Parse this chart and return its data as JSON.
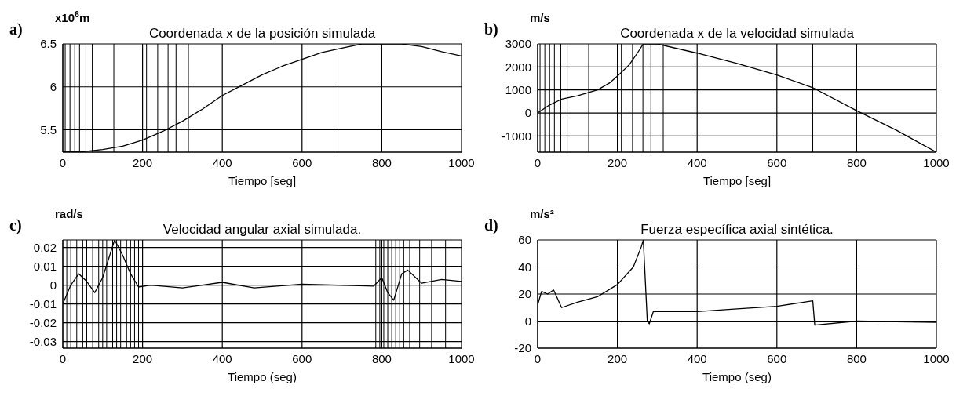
{
  "chart_data": [
    {
      "type": "line",
      "title": "Coordenada x de la posición simulada",
      "xlabel": "Tiempo [seg]",
      "ylabel": "x10$^{6}$m",
      "annotations": [
        "a)"
      ],
      "x": [
        0,
        50,
        100,
        150,
        200,
        250,
        300,
        350,
        400,
        450,
        500,
        550,
        600,
        650,
        700,
        750,
        800,
        850,
        900,
        950,
        1000
      ],
      "series": [
        {
          "color": "#000000",
          "values": [
            5.24,
            5.245,
            5.27,
            5.31,
            5.38,
            5.48,
            5.6,
            5.74,
            5.9,
            6.02,
            6.14,
            6.24,
            6.32,
            6.4,
            6.45,
            6.5,
            6.5,
            6.5,
            6.47,
            6.41,
            6.36
          ]
        }
      ],
      "xlim": [
        0,
        1000
      ],
      "xticks": [
        0,
        200,
        400,
        600,
        800,
        1000
      ],
      "ylim": [
        5.24,
        6.5
      ],
      "yticks": [
        5.5,
        6,
        6.5
      ],
      "grid": true,
      "ref_lines": [
        {
          "axis": "x",
          "value": 6,
          "color": "#000000"
        },
        {
          "axis": "x",
          "value": 18,
          "color": "#000000"
        },
        {
          "axis": "x",
          "value": 30,
          "color": "#000000"
        },
        {
          "axis": "x",
          "value": 42,
          "color": "#000000"
        },
        {
          "axis": "x",
          "value": 58,
          "color": "#000000"
        },
        {
          "axis": "x",
          "value": 74,
          "color": "#000000"
        },
        {
          "axis": "x",
          "value": 128,
          "color": "#000000"
        },
        {
          "axis": "x",
          "value": 210,
          "color": "#000000"
        },
        {
          "axis": "x",
          "value": 238,
          "color": "#000000"
        },
        {
          "axis": "x",
          "value": 264,
          "color": "#000000"
        },
        {
          "axis": "x",
          "value": 284,
          "color": "#000000"
        },
        {
          "axis": "x",
          "value": 315,
          "color": "#000000"
        },
        {
          "axis": "x",
          "value": 690,
          "color": "#000000"
        }
      ]
    },
    {
      "type": "line",
      "title": "Coordenada x de la velocidad simulada",
      "xlabel": "Tiempo [seg]",
      "ylabel": "m/s",
      "annotations": [
        "b)"
      ],
      "x": [
        0,
        30,
        60,
        100,
        150,
        180,
        200,
        230,
        250,
        265,
        300,
        400,
        500,
        600,
        690,
        800,
        900,
        1000
      ],
      "series": [
        {
          "color": "#000000",
          "values": [
            0,
            350,
            600,
            750,
            1000,
            1300,
            1600,
            2100,
            2600,
            3000,
            3000,
            2600,
            2150,
            1650,
            1100,
            100,
            -750,
            -1700
          ]
        }
      ],
      "xlim": [
        0,
        1000
      ],
      "xticks": [
        0,
        200,
        400,
        600,
        800,
        1000
      ],
      "ylim": [
        -1700,
        3000
      ],
      "yticks": [
        -1000,
        0,
        1000,
        2000,
        3000
      ],
      "grid": true,
      "ref_lines": [
        {
          "axis": "x",
          "value": 6,
          "color": "#000000"
        },
        {
          "axis": "x",
          "value": 18,
          "color": "#000000"
        },
        {
          "axis": "x",
          "value": 30,
          "color": "#000000"
        },
        {
          "axis": "x",
          "value": 42,
          "color": "#000000"
        },
        {
          "axis": "x",
          "value": 58,
          "color": "#000000"
        },
        {
          "axis": "x",
          "value": 74,
          "color": "#000000"
        },
        {
          "axis": "x",
          "value": 128,
          "color": "#000000"
        },
        {
          "axis": "x",
          "value": 210,
          "color": "#000000"
        },
        {
          "axis": "x",
          "value": 238,
          "color": "#000000"
        },
        {
          "axis": "x",
          "value": 264,
          "color": "#000000"
        },
        {
          "axis": "x",
          "value": 284,
          "color": "#000000"
        },
        {
          "axis": "x",
          "value": 315,
          "color": "#000000"
        },
        {
          "axis": "x",
          "value": 690,
          "color": "#000000"
        }
      ]
    },
    {
      "type": "line",
      "title": "Velocidad angular axial simulada.",
      "xlabel": "Tiempo (seg)",
      "ylabel": "rad/s",
      "annotations": [
        "c)"
      ],
      "x": [
        0,
        20,
        40,
        60,
        80,
        100,
        130,
        150,
        170,
        190,
        220,
        300,
        400,
        480,
        600,
        780,
        800,
        815,
        830,
        850,
        865,
        900,
        950,
        1000
      ],
      "series": [
        {
          "color": "#000000",
          "values": [
            -0.01,
            0,
            0.006,
            0.002,
            -0.004,
            0.004,
            0.024,
            0.016,
            0.006,
            -0.001,
            0,
            -0.0015,
            0.0015,
            -0.0015,
            0.0005,
            -0.0005,
            0.004,
            -0.004,
            -0.008,
            0.006,
            0.008,
            0.001,
            0.003,
            0.002
          ]
        }
      ],
      "xlim": [
        0,
        1000
      ],
      "xticks": [
        0,
        200,
        400,
        600,
        800,
        1000
      ],
      "ylim": [
        -0.0335,
        0.024
      ],
      "yticks": [
        -0.03,
        -0.02,
        -0.01,
        0,
        0.01,
        0.02
      ],
      "grid": true,
      "ref_lines": [
        {
          "axis": "x",
          "value": 10,
          "color": "#000000"
        },
        {
          "axis": "x",
          "value": 20,
          "color": "#000000"
        },
        {
          "axis": "x",
          "value": 35,
          "color": "#000000"
        },
        {
          "axis": "x",
          "value": 50,
          "color": "#000000"
        },
        {
          "axis": "x",
          "value": 60,
          "color": "#000000"
        },
        {
          "axis": "x",
          "value": 75,
          "color": "#000000"
        },
        {
          "axis": "x",
          "value": 90,
          "color": "#000000"
        },
        {
          "axis": "x",
          "value": 100,
          "color": "#000000"
        },
        {
          "axis": "x",
          "value": 110,
          "color": "#000000"
        },
        {
          "axis": "x",
          "value": 125,
          "color": "#000000"
        },
        {
          "axis": "x",
          "value": 135,
          "color": "#000000"
        },
        {
          "axis": "x",
          "value": 145,
          "color": "#000000"
        },
        {
          "axis": "x",
          "value": 160,
          "color": "#000000"
        },
        {
          "axis": "x",
          "value": 170,
          "color": "#000000"
        },
        {
          "axis": "x",
          "value": 180,
          "color": "#000000"
        },
        {
          "axis": "x",
          "value": 190,
          "color": "#000000"
        },
        {
          "axis": "x",
          "value": 785,
          "color": "#000000"
        },
        {
          "axis": "x",
          "value": 795,
          "color": "#000000"
        },
        {
          "axis": "x",
          "value": 805,
          "color": "#000000"
        },
        {
          "axis": "x",
          "value": 815,
          "color": "#000000"
        },
        {
          "axis": "x",
          "value": 825,
          "color": "#000000"
        },
        {
          "axis": "x",
          "value": 835,
          "color": "#000000"
        },
        {
          "axis": "x",
          "value": 845,
          "color": "#000000"
        },
        {
          "axis": "x",
          "value": 855,
          "color": "#000000"
        },
        {
          "axis": "x",
          "value": 870,
          "color": "#000000"
        },
        {
          "axis": "x",
          "value": 895,
          "color": "#000000"
        },
        {
          "axis": "x",
          "value": 925,
          "color": "#000000"
        },
        {
          "axis": "x",
          "value": 960,
          "color": "#000000"
        }
      ]
    },
    {
      "type": "line",
      "title": "Fuerza específica axial sintética.",
      "xlabel": "Tiempo (seg)",
      "ylabel": "m/s²",
      "annotations": [
        "d)"
      ],
      "x": [
        0,
        10,
        25,
        40,
        60,
        100,
        150,
        200,
        240,
        260,
        265,
        270,
        275,
        280,
        290,
        400,
        500,
        600,
        690,
        695,
        800,
        1000
      ],
      "series": [
        {
          "color": "#000000",
          "values": [
            12,
            22,
            20,
            23,
            10,
            14,
            18,
            27,
            40,
            55,
            60,
            30,
            0,
            -2,
            7,
            7,
            9,
            11,
            15,
            -3,
            0,
            -1
          ]
        }
      ],
      "xlim": [
        0,
        1000
      ],
      "xticks": [
        0,
        200,
        400,
        600,
        800,
        1000
      ],
      "ylim": [
        -20,
        60
      ],
      "yticks": [
        -20,
        0,
        20,
        40,
        60
      ],
      "grid": true
    }
  ]
}
